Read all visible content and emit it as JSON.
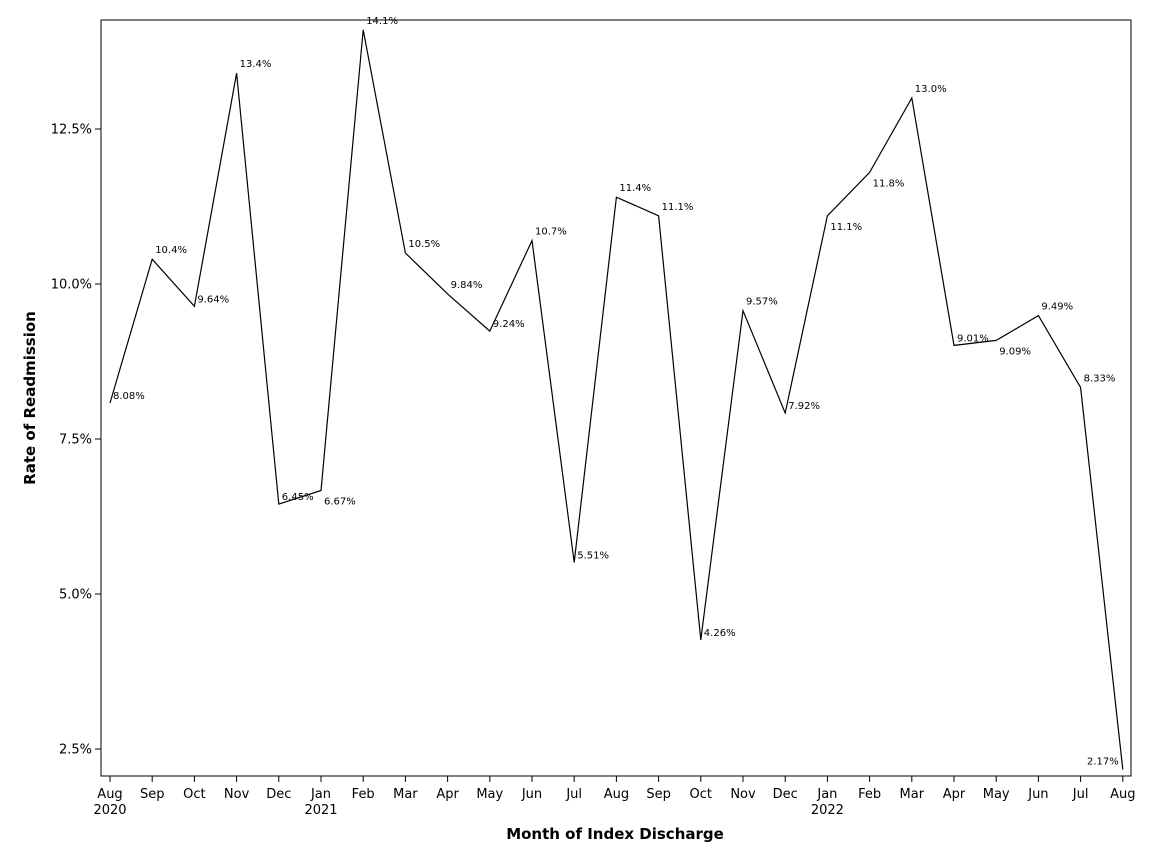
{
  "chart_data": {
    "type": "line",
    "title": "",
    "xlabel": "Month of Index Discharge",
    "ylabel": "Rate of Readmission",
    "ylim": [
      2.1,
      14.2
    ],
    "y_ticks": [
      2.5,
      5.0,
      7.5,
      10.0,
      12.5
    ],
    "y_tick_labels": [
      "2.5%",
      "5.0%",
      "7.5%",
      "10.0%",
      "12.5%"
    ],
    "grid": false,
    "legend": "none",
    "line_color": "#000000",
    "x_labels": [
      {
        "month": "Aug",
        "year": "2020"
      },
      {
        "month": "Sep",
        "year": ""
      },
      {
        "month": "Oct",
        "year": ""
      },
      {
        "month": "Nov",
        "year": ""
      },
      {
        "month": "Dec",
        "year": ""
      },
      {
        "month": "Jan",
        "year": "2021"
      },
      {
        "month": "Feb",
        "year": ""
      },
      {
        "month": "Mar",
        "year": ""
      },
      {
        "month": "Apr",
        "year": ""
      },
      {
        "month": "May",
        "year": ""
      },
      {
        "month": "Jun",
        "year": ""
      },
      {
        "month": "Jul",
        "year": ""
      },
      {
        "month": "Aug",
        "year": ""
      },
      {
        "month": "Sep",
        "year": ""
      },
      {
        "month": "Oct",
        "year": ""
      },
      {
        "month": "Nov",
        "year": ""
      },
      {
        "month": "Dec",
        "year": ""
      },
      {
        "month": "Jan",
        "year": "2022"
      },
      {
        "month": "Feb",
        "year": ""
      },
      {
        "month": "Mar",
        "year": ""
      },
      {
        "month": "Apr",
        "year": ""
      },
      {
        "month": "May",
        "year": ""
      },
      {
        "month": "Jun",
        "year": ""
      },
      {
        "month": "Jul",
        "year": ""
      },
      {
        "month": "Aug",
        "year": ""
      }
    ],
    "series": [
      {
        "values": [
          8.08,
          10.4,
          9.64,
          13.4,
          6.45,
          6.67,
          14.1,
          10.5,
          9.84,
          9.24,
          10.7,
          5.51,
          11.4,
          11.1,
          4.26,
          9.57,
          7.92,
          11.1,
          11.8,
          13.0,
          9.01,
          9.09,
          9.49,
          8.33,
          2.17
        ],
        "labels": [
          "8.08%",
          "10.4%",
          "9.64%",
          "13.4%",
          "6.45%",
          "6.67%",
          "14.1%",
          "10.5%",
          "9.84%",
          "9.24%",
          "10.7%",
          "5.51%",
          "11.4%",
          "11.1%",
          "4.26%",
          "9.57%",
          "7.92%",
          "11.1%",
          "11.8%",
          "13.0%",
          "9.01%",
          "9.09%",
          "9.49%",
          "8.33%",
          "2.17%"
        ]
      }
    ]
  }
}
